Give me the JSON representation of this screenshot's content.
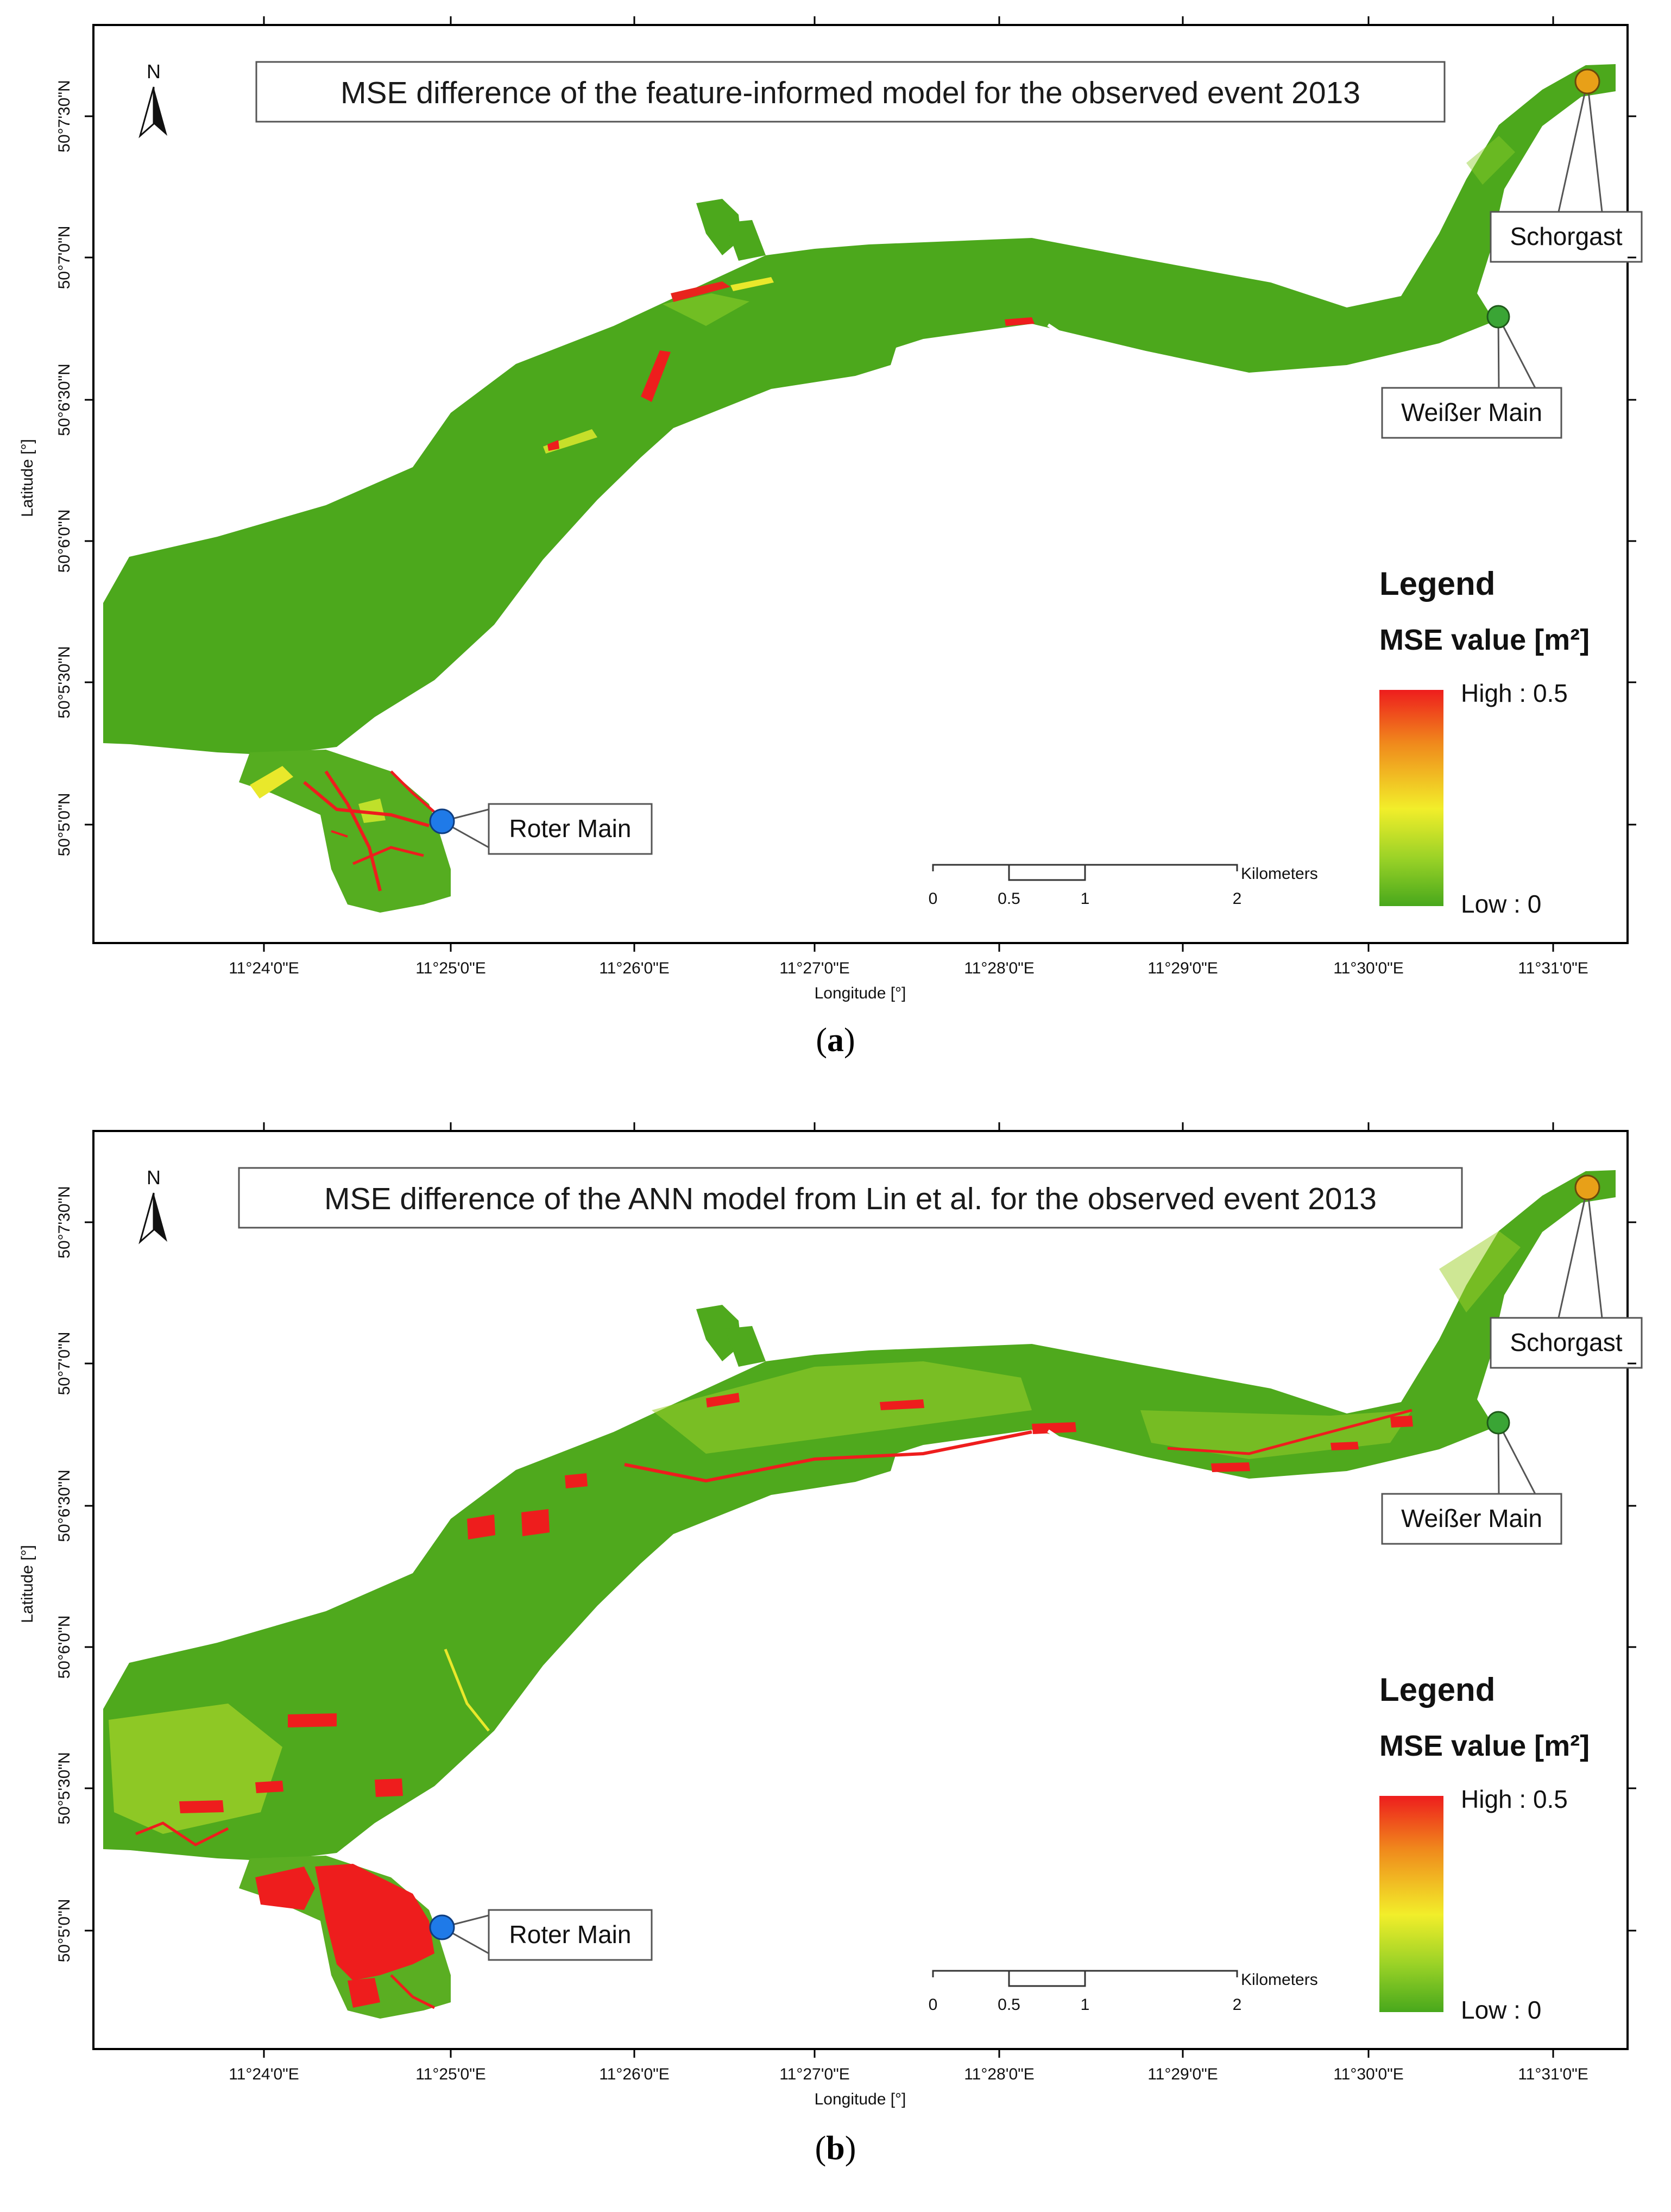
{
  "colors": {
    "floodplain_low": "#4ca81c",
    "floodplain_mid": "#8fcf2a",
    "hotspot_high": "#ee1d1d",
    "roter_main_marker": "#1f7ae8",
    "weisser_main_marker": "#3aa535",
    "schorgast_marker": "#e8a018"
  },
  "panels": [
    {
      "id": "a",
      "caption_label": "a",
      "title": "MSE difference of the feature-informed model for the observed event 2013",
      "north_label": "N",
      "x_axis_label": "Longitude [°]",
      "y_axis_label": "Latitude [°]",
      "x_ticks": [
        "11°24'0\"E",
        "11°25'0\"E",
        "11°26'0\"E",
        "11°27'0\"E",
        "11°28'0\"E",
        "11°29'0\"E",
        "11°30'0\"E",
        "11°31'0\"E"
      ],
      "y_ticks": [
        "50°7'30\"N",
        "50°7'0\"N",
        "50°6'30\"N",
        "50°6'0\"N",
        "50°5'30\"N",
        "50°5'0\"N"
      ],
      "places": {
        "schorgast": "Schorgast",
        "weisser_main": "Weißer Main",
        "roter_main": "Roter Main"
      },
      "legend": {
        "title": "Legend",
        "subtitle": "MSE value [m²]",
        "high": "High : 0.5",
        "low": "Low : 0"
      },
      "scalebar": {
        "unit": "Kilometers",
        "ticks": [
          "0",
          "0.5",
          "1",
          "2"
        ]
      }
    },
    {
      "id": "b",
      "caption_label": "b",
      "title": "MSE difference of the ANN model from Lin et al. for the observed event 2013",
      "north_label": "N",
      "x_axis_label": "Longitude [°]",
      "y_axis_label": "Latitude [°]",
      "x_ticks": [
        "11°24'0\"E",
        "11°25'0\"E",
        "11°26'0\"E",
        "11°27'0\"E",
        "11°28'0\"E",
        "11°29'0\"E",
        "11°30'0\"E",
        "11°31'0\"E"
      ],
      "y_ticks": [
        "50°7'30\"N",
        "50°7'0\"N",
        "50°6'30\"N",
        "50°6'0\"N",
        "50°5'30\"N",
        "50°5'0\"N"
      ],
      "places": {
        "schorgast": "Schorgast",
        "weisser_main": "Weißer Main",
        "roter_main": "Roter Main"
      },
      "legend": {
        "title": "Legend",
        "subtitle": "MSE value [m²]",
        "high": "High : 0.5",
        "low": "Low : 0"
      },
      "scalebar": {
        "unit": "Kilometers",
        "ticks": [
          "0",
          "0.5",
          "1",
          "2"
        ]
      }
    }
  ]
}
